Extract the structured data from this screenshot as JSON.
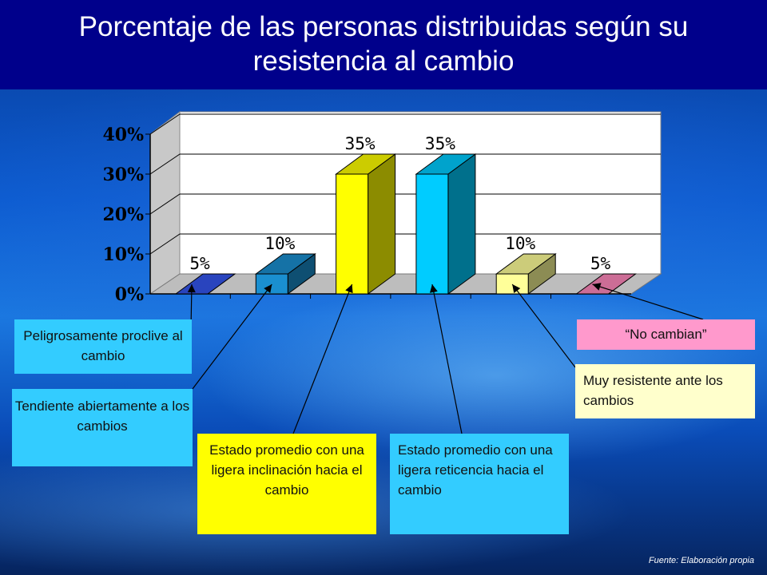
{
  "title": "Porcentaje de las personas distribuidas según su resistencia al cambio",
  "source": "Fuente: Elaboración propia",
  "chart_data": {
    "type": "bar",
    "categories": [
      "Peligrosamente proclive al cambio",
      "Tendiente abiertamente a los cambios",
      "Estado promedio con una ligera inclinación hacia el cambio",
      "Estado promedio con una ligera reticencia hacia el cambio",
      "Muy resistente ante los cambios",
      "“No cambian”"
    ],
    "values": [
      5,
      10,
      35,
      35,
      10,
      5
    ],
    "data_labels": [
      "5%",
      "10%",
      "35%",
      "35%",
      "10%",
      "5%"
    ],
    "colors": [
      "#3355ee",
      "#1a8fd0",
      "#ffff00",
      "#00ccff",
      "#ffff99",
      "#ff88bb"
    ],
    "yticks": [
      "0%",
      "10%",
      "20%",
      "30%",
      "40%"
    ],
    "ylim": [
      0,
      40
    ],
    "grid": true,
    "style": "3d-bar"
  },
  "annotations": [
    "Peligrosamente proclive al cambio",
    "Tendiente abiertamente a los cambios",
    "Estado promedio con una ligera inclinación hacia el cambio",
    "Estado promedio con una ligera reticencia hacia el cambio",
    "Muy resistente ante los cambios",
    "“No cambian”"
  ]
}
